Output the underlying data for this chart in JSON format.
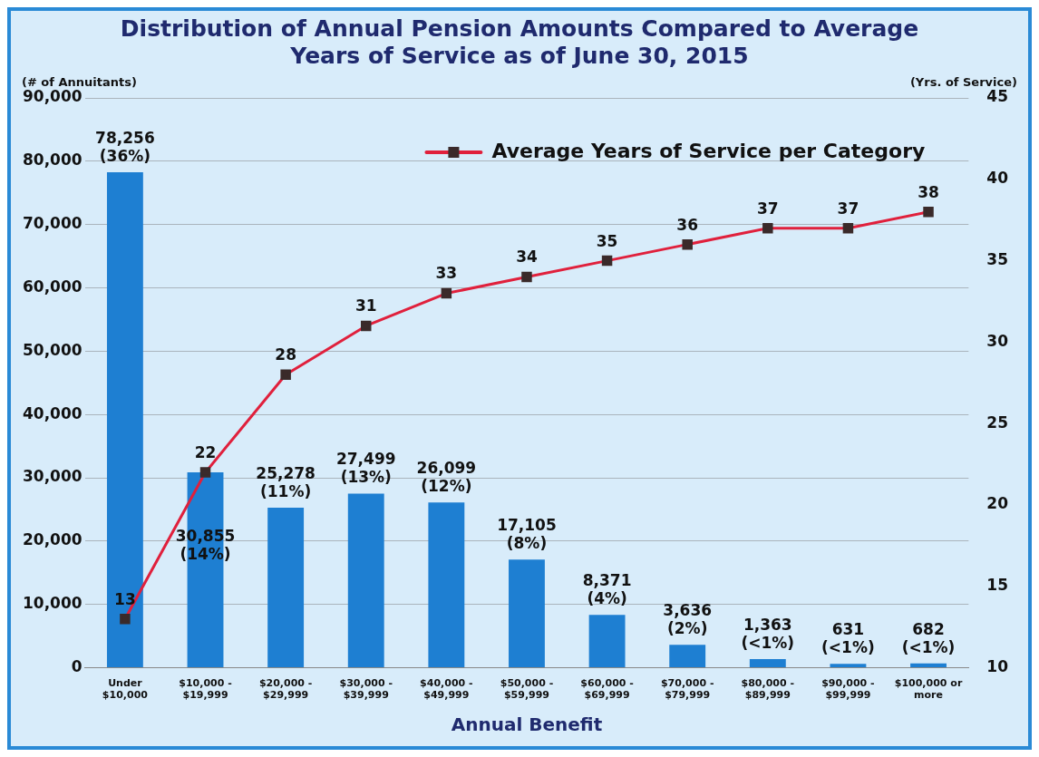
{
  "chart_data": {
    "type": "bar",
    "title": "Distribution of Annual Pension Amounts Compared to Average Years of Service as of June 30, 2015",
    "xlabel": "Annual Benefit",
    "ylabel": "(# of Annuitants)",
    "y2label": "(Yrs. of Service)",
    "categories": [
      "Under $10,000",
      "$10,000 - $19,999",
      "$20,000 - $29,999",
      "$30,000 - $39,999",
      "$40,000 - $49,999",
      "$50,000 - $59,999",
      "$60,000 - $69,999",
      "$70,000 - $79,999",
      "$80,000 - $89,999",
      "$90,000 - $99,999",
      "$100,000 or more"
    ],
    "series": [
      {
        "color": "#1e7fd2",
        "values": [
          78256,
          30855,
          25278,
          27499,
          26099,
          17105,
          8371,
          3636,
          1363,
          631,
          682
        ],
        "value_labels": [
          "78,256 (36%)",
          "30,855 (14%)",
          "25,278 (11%)",
          "27,499 (13%)",
          "26,099 (12%)",
          "17,105 (8%)",
          "8,371 (4%)",
          "3,636 (2%)",
          "1,363 (<1%)",
          "631 (<1%)",
          "682 (<1%)"
        ]
      },
      {
        "type": "line",
        "name": "Average Years of Service per Category",
        "axis": "y2",
        "color": "#e0203c",
        "values": [
          13,
          22,
          28,
          31,
          33,
          34,
          35,
          36,
          37,
          37,
          38
        ],
        "value_labels": [
          "13",
          "22",
          "28",
          "31",
          "33",
          "34",
          "35",
          "36",
          "37",
          "37",
          "38"
        ]
      }
    ],
    "ylim": [
      0,
      90000
    ],
    "yticks": [
      0,
      {
        "value": 10000,
        "label": "10,000"
      },
      {
        "value": 20000,
        "label": "20,000"
      },
      {
        "value": 30000,
        "label": "30,000"
      },
      {
        "value": 40000,
        "label": "40,000"
      },
      {
        "value": 50000,
        "label": "50,000"
      },
      {
        "value": 60000,
        "label": "60,000"
      },
      {
        "value": 70000,
        "label": "70,000"
      },
      {
        "value": 80000,
        "label": "80,000"
      },
      {
        "value": 90000,
        "label": "90,000"
      }
    ],
    "y2lim": [
      10,
      45
    ],
    "y2ticks": [
      10,
      15,
      20,
      25,
      30,
      35,
      40,
      45
    ],
    "grid": "y",
    "legend": "top right",
    "marker": "square",
    "line_style": "solid"
  }
}
